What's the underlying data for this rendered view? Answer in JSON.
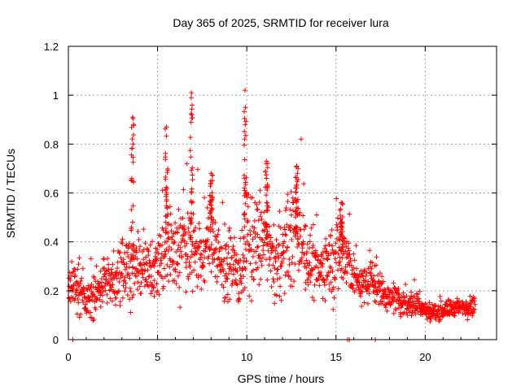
{
  "chart_data": {
    "type": "scatter",
    "title": "Day 365 of 2025, SRMTID for receiver lura",
    "xlabel": "GPS time / hours",
    "ylabel": "SRMTID / TECUs",
    "xlim": [
      0,
      24
    ],
    "ylim": [
      0,
      1.2
    ],
    "xticks": [
      0,
      5,
      10,
      15,
      20
    ],
    "xtick_labels": [
      "0",
      "5",
      "10",
      "15",
      "20"
    ],
    "yticks": [
      0,
      0.2,
      0.4,
      0.6,
      0.8,
      1.0,
      1.2
    ],
    "ytick_labels": [
      "0",
      "0.2",
      "0.4",
      "0.6",
      "0.8",
      "1",
      "1.2"
    ],
    "grid": true,
    "marker": "plus",
    "series": [
      {
        "name": "SRMTID",
        "color": "#ff0000",
        "profile_hours": [
          0,
          0.5,
          1,
          1.5,
          2,
          2.5,
          3,
          3.5,
          4,
          4.5,
          5,
          5.5,
          6,
          6.5,
          7,
          7.5,
          8,
          8.5,
          9,
          9.5,
          10,
          10.5,
          11,
          11.5,
          12,
          12.5,
          13,
          13.5,
          14,
          14.5,
          15,
          15.5,
          16,
          16.5,
          17,
          17.5,
          18,
          18.5,
          19,
          19.5,
          20,
          20.5,
          21,
          21.5,
          22,
          22.5,
          22.8
        ],
        "profile_typical": [
          0.2,
          0.22,
          0.15,
          0.18,
          0.25,
          0.22,
          0.3,
          0.3,
          0.28,
          0.28,
          0.3,
          0.4,
          0.35,
          0.38,
          0.4,
          0.32,
          0.45,
          0.32,
          0.3,
          0.25,
          0.4,
          0.38,
          0.42,
          0.3,
          0.35,
          0.4,
          0.45,
          0.3,
          0.28,
          0.3,
          0.35,
          0.35,
          0.25,
          0.22,
          0.25,
          0.2,
          0.17,
          0.16,
          0.15,
          0.15,
          0.12,
          0.11,
          0.12,
          0.13,
          0.13,
          0.14,
          0.15
        ],
        "profile_spread": [
          0.08,
          0.1,
          0.08,
          0.1,
          0.1,
          0.12,
          0.15,
          0.15,
          0.12,
          0.12,
          0.15,
          0.25,
          0.2,
          0.2,
          0.2,
          0.15,
          0.2,
          0.15,
          0.15,
          0.15,
          0.25,
          0.2,
          0.2,
          0.15,
          0.2,
          0.2,
          0.2,
          0.15,
          0.12,
          0.15,
          0.2,
          0.18,
          0.1,
          0.08,
          0.1,
          0.08,
          0.06,
          0.06,
          0.06,
          0.06,
          0.04,
          0.04,
          0.04,
          0.04,
          0.04,
          0.05,
          0.05
        ],
        "peaks": [
          {
            "hour": 3.6,
            "max": 0.91
          },
          {
            "hour": 5.5,
            "max": 0.87
          },
          {
            "hour": 6.9,
            "max": 1.01
          },
          {
            "hour": 9.9,
            "max": 1.02
          },
          {
            "hour": 11.1,
            "max": 0.73
          },
          {
            "hour": 12.8,
            "max": 0.71
          },
          {
            "hour": 15.3,
            "max": 0.56
          },
          {
            "hour": 8.0,
            "max": 0.68
          }
        ],
        "baseline_points": [
          {
            "x": 0.25,
            "y": 0
          },
          {
            "x": 15.65,
            "y": 0
          },
          {
            "x": 15.75,
            "y": 0
          },
          {
            "x": 17.2,
            "y": 0
          }
        ]
      }
    ]
  }
}
